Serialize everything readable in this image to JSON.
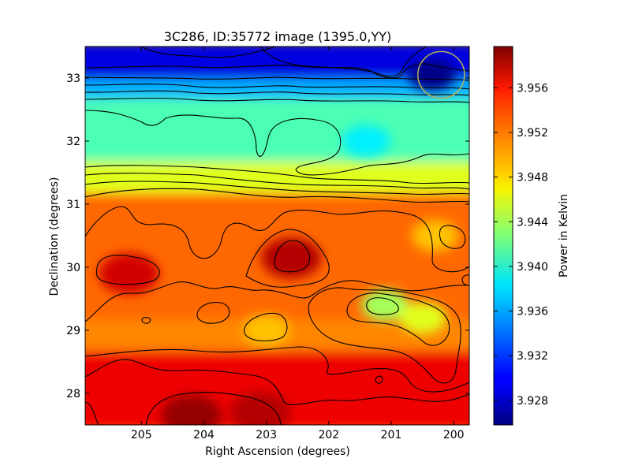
{
  "chart_data": {
    "type": "heatmap",
    "title": "3C286, ID:35772 image (1395.0,YY)",
    "xlabel": "Right Ascension (degrees)",
    "ylabel": "Declination (degrees)",
    "xlim": [
      205.9,
      199.75
    ],
    "ylim": [
      27.5,
      33.5
    ],
    "x_ticks": [
      205,
      204,
      203,
      202,
      201,
      200
    ],
    "y_ticks": [
      28,
      29,
      30,
      31,
      32,
      33
    ],
    "x_tick_labels": [
      "205",
      "204",
      "203",
      "202",
      "201",
      "200"
    ],
    "y_tick_labels": [
      "28",
      "29",
      "30",
      "31",
      "32",
      "33"
    ],
    "colorbar": {
      "label": "Power in Kelvin",
      "range": [
        3.9258,
        3.9597
      ],
      "ticks": [
        3.928,
        3.932,
        3.936,
        3.94,
        3.944,
        3.948,
        3.952,
        3.956
      ],
      "tick_labels": [
        "3.928",
        "3.932",
        "3.936",
        "3.940",
        "3.944",
        "3.948",
        "3.952",
        "3.956"
      ],
      "colormap": "jet"
    },
    "beam_circle": {
      "ra": 200.2,
      "dec": 33.05,
      "radius_deg": 0.37,
      "color": "#b8b05a"
    },
    "zones": [
      {
        "dec_range": [
          32.9,
          33.5
        ],
        "value": 3.929
      },
      {
        "dec_range": [
          32.6,
          32.9
        ],
        "value": 3.936
      },
      {
        "dec_range": [
          31.6,
          32.6
        ],
        "value": 3.941
      },
      {
        "dec_range": [
          31.1,
          31.6
        ],
        "value": 3.946
      },
      {
        "dec_range": [
          29.1,
          31.1
        ],
        "value": 3.952
      },
      {
        "dec_range": [
          28.6,
          29.1
        ],
        "value": 3.951
      },
      {
        "dec_range": [
          27.5,
          28.6
        ],
        "value": 3.956
      }
    ],
    "features": [
      {
        "ra": 205.2,
        "dec": 29.9,
        "value": 3.957,
        "kind": "max"
      },
      {
        "ra": 202.6,
        "dec": 30.15,
        "value": 3.958,
        "kind": "max"
      },
      {
        "ra": 204.2,
        "dec": 27.65,
        "value": 3.959,
        "kind": "max"
      },
      {
        "ra": 203.1,
        "dec": 27.7,
        "value": 3.958,
        "kind": "max"
      },
      {
        "ra": 200.35,
        "dec": 33.05,
        "value": 3.926,
        "kind": "min"
      },
      {
        "ra": 201.4,
        "dec": 32.0,
        "value": 3.938,
        "kind": "min"
      },
      {
        "ra": 201.1,
        "dec": 29.4,
        "value": 3.944,
        "kind": "min"
      },
      {
        "ra": 200.5,
        "dec": 29.2,
        "value": 3.946,
        "kind": "min"
      },
      {
        "ra": 200.3,
        "dec": 30.5,
        "value": 3.949,
        "kind": "min"
      },
      {
        "ra": 203.0,
        "dec": 29.0,
        "value": 3.949,
        "kind": "min"
      }
    ],
    "grid": false
  }
}
